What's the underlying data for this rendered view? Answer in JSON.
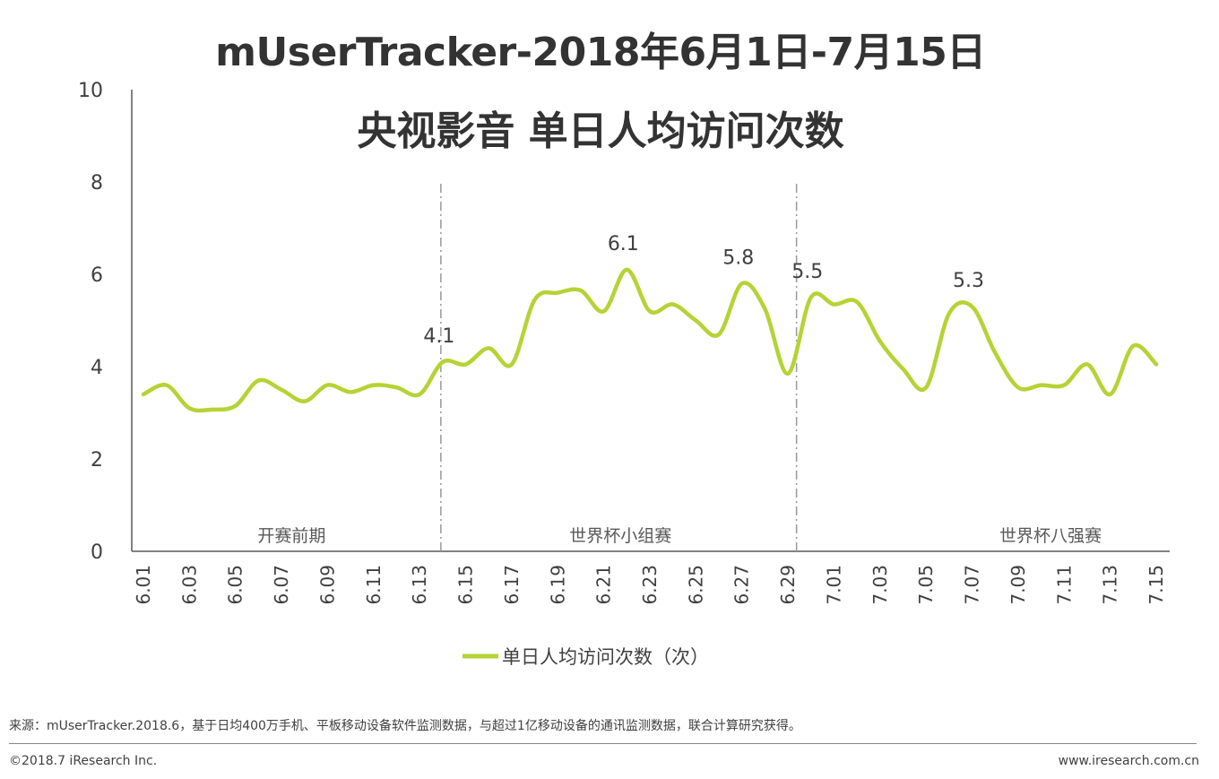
{
  "title_line1": "mUserTracker-2018年6月1日-7月15日",
  "title_line2": "央视影音 单日人均访问次数",
  "chart_data": {
    "type": "line",
    "title": "mUserTracker-2018年6月1日-7月15日 央视影音 单日人均访问次数",
    "xlabel": "",
    "ylabel": "",
    "ylim": [
      0,
      10
    ],
    "yticks": [
      "0",
      "2",
      "4",
      "6",
      "8",
      "10"
    ],
    "grid": false,
    "legend_position": "bottom",
    "color": "#B5D334",
    "x": [
      "6.01",
      "6.02",
      "6.03",
      "6.04",
      "6.05",
      "6.06",
      "6.07",
      "6.08",
      "6.09",
      "6.10",
      "6.11",
      "6.12",
      "6.13",
      "6.14",
      "6.15",
      "6.16",
      "6.17",
      "6.18",
      "6.19",
      "6.20",
      "6.21",
      "6.22",
      "6.23",
      "6.24",
      "6.25",
      "6.26",
      "6.27",
      "6.28",
      "6.29",
      "6.30",
      "7.01",
      "7.02",
      "7.03",
      "7.04",
      "7.05",
      "7.06",
      "7.07",
      "7.08",
      "7.09",
      "7.10",
      "7.11",
      "7.12",
      "7.13",
      "7.14",
      "7.15"
    ],
    "xtick_labels": [
      "6.01",
      "6.03",
      "6.05",
      "6.07",
      "6.09",
      "6.11",
      "6.13",
      "6.15",
      "6.17",
      "6.19",
      "6.21",
      "6.23",
      "6.25",
      "6.27",
      "6.29",
      "7.01",
      "7.03",
      "7.05",
      "7.07",
      "7.09",
      "7.11",
      "7.13",
      "7.15"
    ],
    "series": [
      {
        "name": "单日人均访问次数（次）",
        "values": [
          3.4,
          3.6,
          3.1,
          3.07,
          3.15,
          3.7,
          3.5,
          3.25,
          3.6,
          3.45,
          3.6,
          3.55,
          3.4,
          4.1,
          4.05,
          4.4,
          4.05,
          5.45,
          5.6,
          5.65,
          5.2,
          6.1,
          5.2,
          5.35,
          5.0,
          4.7,
          5.8,
          5.25,
          3.85,
          5.5,
          5.35,
          5.4,
          4.55,
          3.95,
          3.55,
          5.15,
          5.3,
          4.3,
          3.55,
          3.6,
          3.6,
          4.05,
          3.4,
          4.45,
          4.05
        ]
      }
    ],
    "annotations": [
      {
        "x": "6.14",
        "text": "4.1"
      },
      {
        "x": "6.22",
        "text": "6.1"
      },
      {
        "x": "6.27",
        "text": "5.8"
      },
      {
        "x": "6.30",
        "text": "5.5"
      },
      {
        "x": "7.07",
        "text": "5.3"
      }
    ],
    "phases": [
      "开赛前期",
      "世界杯小组赛",
      "世界杯八强赛"
    ]
  },
  "footer": {
    "source": "来源：mUserTracker.2018.6，基于日均400万手机、平板移动设备软件监测数据，与超过1亿移动设备的通讯监测数据，联合计算研究获得。",
    "copyright": "©2018.7 iResearch Inc.",
    "website": "www.iresearch.com.cn"
  }
}
